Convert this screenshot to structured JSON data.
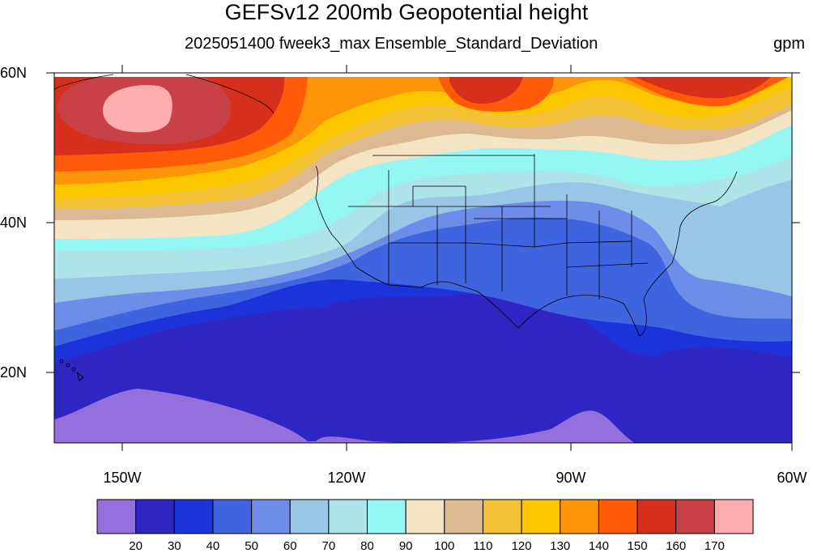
{
  "title": "GEFSv12 200mb Geopotential height",
  "subtitle": "2025051400 fweek3_max Ensemble_Standard_Deviation",
  "units": "gpm",
  "lat_labels": [
    "60N",
    "40N",
    "20N"
  ],
  "lon_labels": [
    "150W",
    "120W",
    "90W",
    "60W"
  ],
  "map_extent": {
    "lon_min": -159,
    "lon_max": -60,
    "lat_min": 10,
    "lat_max": 60
  },
  "colorbar": {
    "levels": [
      "20",
      "30",
      "40",
      "50",
      "60",
      "70",
      "80",
      "90",
      "100",
      "110",
      "120",
      "130",
      "140",
      "150",
      "160",
      "170"
    ],
    "colors": [
      "#9370db",
      "#2f25c2",
      "#1c33d9",
      "#4064e0",
      "#6e8de8",
      "#99c5e6",
      "#aee3ea",
      "#96f6f4",
      "#f3e4c4",
      "#dcb990",
      "#f2c136",
      "#fdc700",
      "#fe9408",
      "#fe5a08",
      "#d62f1c",
      "#c84147",
      "#ffadaf"
    ]
  }
}
